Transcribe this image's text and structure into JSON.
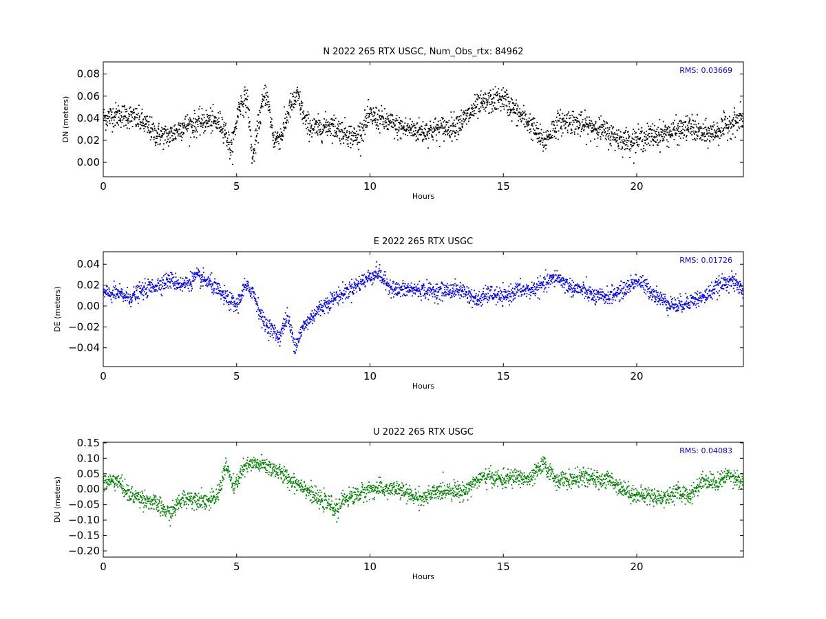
{
  "chart_data": [
    {
      "type": "scatter",
      "title": "N 2022 265 RTX  USGC, Num_Obs_rtx: 84962",
      "xlabel": "Hours",
      "ylabel": "DN (meters)",
      "xlim": [
        0,
        24
      ],
      "ylim": [
        -0.013,
        0.091
      ],
      "xticks": [
        0,
        5,
        10,
        15,
        20
      ],
      "yticks": [
        0.0,
        0.02,
        0.04,
        0.06,
        0.08
      ],
      "ytick_labels": [
        "0.00",
        "0.02",
        "0.04",
        "0.06",
        "0.08"
      ],
      "annotation": "RMS:  0.03669",
      "color": "#000000",
      "grid": false,
      "series": [
        {
          "x": [
            0,
            0.5,
            1,
            1.5,
            2,
            2.5,
            3,
            3.5,
            4,
            4.5,
            4.8,
            5.1,
            5.4,
            5.6,
            5.9,
            6.1,
            6.4,
            6.7,
            7.0,
            7.3,
            7.6,
            8,
            8.5,
            9,
            9.5,
            10,
            10.5,
            11,
            11.5,
            12,
            12.5,
            13,
            13.5,
            14,
            14.5,
            15,
            15.5,
            16,
            16.5,
            17,
            17.5,
            18,
            18.5,
            19,
            19.5,
            20,
            20.5,
            21,
            21.5,
            22,
            22.5,
            23,
            23.5,
            24
          ],
          "y": [
            0.04,
            0.043,
            0.042,
            0.036,
            0.025,
            0.024,
            0.033,
            0.035,
            0.038,
            0.034,
            0.01,
            0.052,
            0.058,
            0.002,
            0.045,
            0.065,
            0.02,
            0.025,
            0.05,
            0.06,
            0.035,
            0.03,
            0.034,
            0.028,
            0.022,
            0.042,
            0.038,
            0.032,
            0.03,
            0.028,
            0.03,
            0.032,
            0.038,
            0.05,
            0.055,
            0.058,
            0.045,
            0.035,
            0.018,
            0.035,
            0.038,
            0.033,
            0.032,
            0.025,
            0.02,
            0.02,
            0.024,
            0.026,
            0.028,
            0.032,
            0.025,
            0.028,
            0.035,
            0.04
          ],
          "spread": 0.011
        }
      ]
    },
    {
      "type": "scatter",
      "title": "E 2022 265 RTX  USGC",
      "xlabel": "Hours",
      "ylabel": "DE (meters)",
      "xlim": [
        0,
        24
      ],
      "ylim": [
        -0.058,
        0.052
      ],
      "xticks": [
        0,
        5,
        10,
        15,
        20
      ],
      "yticks": [
        -0.04,
        -0.02,
        0.0,
        0.02,
        0.04
      ],
      "ytick_labels": [
        "−0.04",
        "−0.02",
        "0.00",
        "0.02",
        "0.04"
      ],
      "annotation": "RMS:  0.01726",
      "color": "#0000ff",
      "grid": false,
      "series": [
        {
          "x": [
            0,
            0.5,
            1,
            1.5,
            2,
            2.5,
            3,
            3.5,
            4,
            4.5,
            5,
            5.3,
            5.6,
            6,
            6.3,
            6.6,
            6.9,
            7.2,
            7.5,
            8,
            8.5,
            9,
            9.5,
            10,
            10.3,
            10.6,
            11,
            11.5,
            12,
            12.5,
            13,
            13.5,
            14,
            14.5,
            15,
            15.5,
            16,
            16.5,
            17,
            17.5,
            18,
            18.5,
            19,
            19.5,
            20,
            20.5,
            21,
            21.5,
            22,
            22.5,
            23,
            23.5,
            24
          ],
          "y": [
            0.012,
            0.012,
            0.008,
            0.015,
            0.02,
            0.025,
            0.02,
            0.028,
            0.022,
            0.01,
            0.0,
            0.018,
            0.015,
            -0.015,
            -0.022,
            -0.03,
            -0.01,
            -0.038,
            -0.02,
            -0.005,
            0.005,
            0.012,
            0.02,
            0.028,
            0.032,
            0.022,
            0.015,
            0.016,
            0.015,
            0.014,
            0.015,
            0.015,
            0.005,
            0.012,
            0.008,
            0.015,
            0.015,
            0.02,
            0.028,
            0.018,
            0.015,
            0.008,
            0.01,
            0.015,
            0.025,
            0.015,
            0.005,
            0.0,
            0.005,
            0.008,
            0.018,
            0.025,
            0.015
          ],
          "spread": 0.008
        }
      ]
    },
    {
      "type": "scatter",
      "title": "U 2022 265 RTX  USGC",
      "xlabel": "Hours",
      "ylabel": "DU (meters)",
      "xlim": [
        0,
        24
      ],
      "ylim": [
        -0.22,
        0.152
      ],
      "xticks": [
        0,
        5,
        10,
        15,
        20
      ],
      "yticks": [
        -0.2,
        -0.15,
        -0.1,
        -0.05,
        0.0,
        0.05,
        0.1,
        0.15
      ],
      "ytick_labels": [
        "−0.20",
        "−0.15",
        "−0.10",
        "−0.05",
        "0.00",
        "0.05",
        "0.10",
        "0.15"
      ],
      "annotation": "RMS:  0.04083",
      "color": "#008000",
      "grid": false,
      "series": [
        {
          "x": [
            0,
            0.5,
            1,
            1.5,
            2,
            2.5,
            3,
            3.5,
            4,
            4.3,
            4.6,
            4.9,
            5.2,
            5.5,
            6,
            6.5,
            7,
            7.5,
            8,
            8.5,
            8.8,
            9,
            9.5,
            10,
            10.5,
            11,
            11.5,
            12,
            12.5,
            13,
            13.5,
            14,
            14.5,
            15,
            15.5,
            16,
            16.5,
            17,
            17.5,
            18,
            18.5,
            19,
            19.5,
            20,
            20.5,
            21,
            21.5,
            22,
            22.5,
            23,
            23.5,
            24
          ],
          "y": [
            0.02,
            0.03,
            -0.02,
            -0.03,
            -0.05,
            -0.08,
            -0.03,
            -0.03,
            -0.04,
            -0.02,
            0.08,
            0.0,
            0.06,
            0.08,
            0.08,
            0.06,
            0.03,
            0.01,
            -0.03,
            -0.05,
            -0.07,
            -0.03,
            -0.02,
            0.0,
            0.0,
            0.0,
            -0.02,
            -0.03,
            -0.01,
            0.0,
            -0.01,
            0.03,
            0.04,
            0.03,
            0.04,
            0.03,
            0.08,
            0.03,
            0.03,
            0.04,
            0.03,
            0.03,
            0.0,
            -0.02,
            -0.02,
            -0.03,
            -0.01,
            -0.02,
            0.03,
            0.02,
            0.05,
            0.02
          ],
          "spread": 0.028
        }
      ]
    }
  ]
}
